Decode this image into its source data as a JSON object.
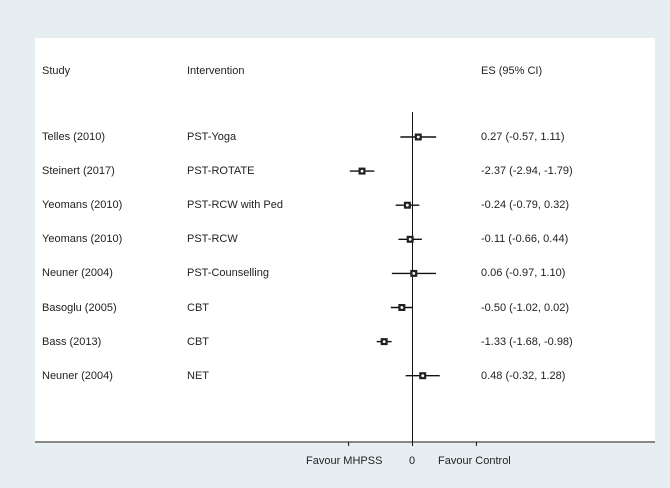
{
  "chart_data": {
    "type": "forest",
    "columns": {
      "study_header": "Study",
      "intervention_header": "Intervention",
      "es_header": "ES (95% CI)"
    },
    "rows": [
      {
        "study": "Telles (2010)",
        "intervention": "PST-Yoga",
        "es": 0.27,
        "lo": -0.57,
        "hi": 1.11,
        "label": "0.27 (-0.57, 1.11)"
      },
      {
        "study": "Steinert (2017)",
        "intervention": "PST-ROTATE",
        "es": -2.37,
        "lo": -2.94,
        "hi": -1.79,
        "label": "-2.37 (-2.94, -1.79)"
      },
      {
        "study": "Yeomans (2010)",
        "intervention": "PST-RCW with Ped",
        "es": -0.24,
        "lo": -0.79,
        "hi": 0.32,
        "label": "-0.24 (-0.79, 0.32)"
      },
      {
        "study": "Yeomans (2010)",
        "intervention": "PST-RCW",
        "es": -0.11,
        "lo": -0.66,
        "hi": 0.44,
        "label": "-0.11 (-0.66, 0.44)"
      },
      {
        "study": "Neuner (2004)",
        "intervention": "PST-Counselling",
        "es": 0.06,
        "lo": -0.97,
        "hi": 1.1,
        "label": "0.06 (-0.97, 1.10)"
      },
      {
        "study": "Basoglu (2005)",
        "intervention": "CBT",
        "es": -0.5,
        "lo": -1.02,
        "hi": 0.02,
        "label": "-0.50 (-1.02, 0.02)"
      },
      {
        "study": "Bass (2013)",
        "intervention": "CBT",
        "es": -1.33,
        "lo": -1.68,
        "hi": -0.98,
        "label": "-1.33 (-1.68, -0.98)"
      },
      {
        "study": "Neuner (2004)",
        "intervention": "NET",
        "es": 0.48,
        "lo": -0.32,
        "hi": 1.28,
        "label": "0.48 (-0.32, 1.28)"
      }
    ],
    "xaxis": {
      "left_label": "Favour MHPSS",
      "center_label": "0",
      "right_label": "Favour Control",
      "ticks": [
        -3,
        0,
        3
      ]
    },
    "colors": {
      "background": "#e6eef2",
      "panel": "#ffffff",
      "ink": "#111111"
    }
  }
}
